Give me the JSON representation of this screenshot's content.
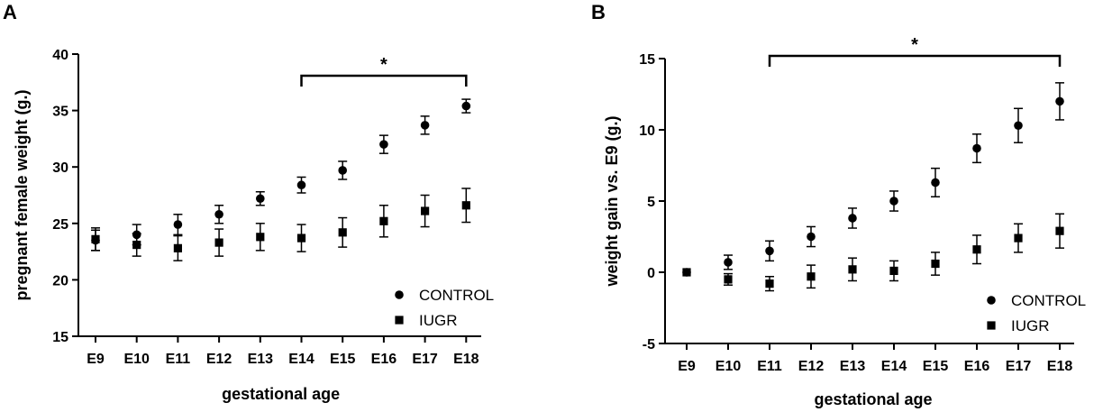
{
  "panels": [
    {
      "letter": "A"
    },
    {
      "letter": "B"
    }
  ],
  "chart_data": [
    {
      "type": "scatter",
      "panel": "A",
      "xlabel": "gestational age",
      "ylabel": "pregnant female weight (g.)",
      "categories": [
        "E9",
        "E10",
        "E11",
        "E12",
        "E13",
        "E14",
        "E15",
        "E16",
        "E17",
        "E18"
      ],
      "ylim": [
        15,
        40
      ],
      "yticks": [
        "15",
        "20",
        "25",
        "30",
        "35",
        "40"
      ],
      "ytick_values": [
        15,
        20,
        25,
        30,
        35,
        40
      ],
      "series": [
        {
          "name": "CONTROL",
          "marker": "circle",
          "values": [
            23.5,
            24.0,
            24.9,
            25.8,
            27.2,
            28.4,
            29.7,
            32.0,
            33.7,
            35.4
          ],
          "errors": [
            0.9,
            0.9,
            0.9,
            0.8,
            0.6,
            0.7,
            0.8,
            0.8,
            0.8,
            0.6
          ]
        },
        {
          "name": "IUGR",
          "marker": "square",
          "values": [
            23.6,
            23.1,
            22.8,
            23.3,
            23.8,
            23.7,
            24.2,
            25.2,
            26.1,
            26.6
          ],
          "errors": [
            1.0,
            1.0,
            1.1,
            1.2,
            1.2,
            1.2,
            1.3,
            1.4,
            1.4,
            1.5
          ]
        }
      ],
      "significance": {
        "label": "*",
        "from": "E14",
        "to": "E18"
      },
      "legend_position": "bottom-right"
    },
    {
      "type": "scatter",
      "panel": "B",
      "xlabel": "gestational age",
      "ylabel": "weight gain vs. E9 (g.)",
      "categories": [
        "E9",
        "E10",
        "E11",
        "E12",
        "E13",
        "E14",
        "E15",
        "E16",
        "E17",
        "E18"
      ],
      "ylim": [
        -5,
        15
      ],
      "yticks": [
        "-5",
        "0",
        "5",
        "10",
        "15"
      ],
      "ytick_values": [
        -5,
        0,
        5,
        10,
        15
      ],
      "series": [
        {
          "name": "CONTROL",
          "marker": "circle",
          "values": [
            0.0,
            0.7,
            1.5,
            2.5,
            3.8,
            5.0,
            6.3,
            8.7,
            10.3,
            12.0
          ],
          "errors": [
            0.0,
            0.5,
            0.7,
            0.7,
            0.7,
            0.7,
            1.0,
            1.0,
            1.2,
            1.3
          ]
        },
        {
          "name": "IUGR",
          "marker": "square",
          "values": [
            0.0,
            -0.5,
            -0.8,
            -0.3,
            0.2,
            0.1,
            0.6,
            1.6,
            2.4,
            2.9
          ],
          "errors": [
            0.0,
            0.4,
            0.5,
            0.8,
            0.8,
            0.7,
            0.8,
            1.0,
            1.0,
            1.2
          ]
        }
      ],
      "significance": {
        "label": "*",
        "from": "E11",
        "to": "E18"
      },
      "legend_position": "bottom-right"
    }
  ]
}
